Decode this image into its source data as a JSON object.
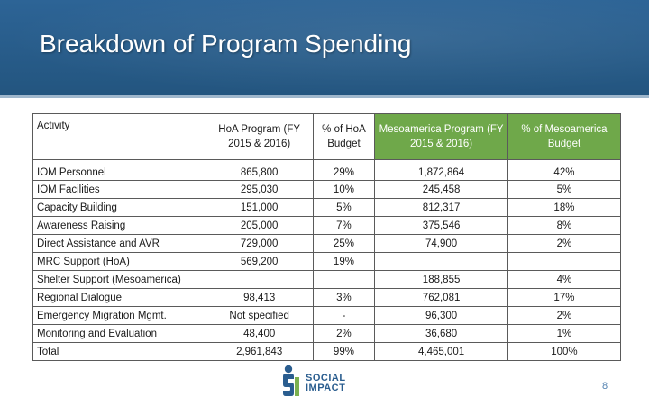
{
  "slide": {
    "title": "Breakdown of Program Spending",
    "page_number": "8"
  },
  "table": {
    "headers": {
      "activity": "Activity",
      "hoa_program": "HoA Program (FY 2015 & 2016)",
      "hoa_pct": "% of HoA Budget",
      "meso_program": "Mesoamerica Program (FY 2015 & 2016)",
      "meso_pct": "% of Mesoamerica Budget"
    },
    "rows": [
      {
        "activity": "IOM Personnel",
        "hoa": "865,800",
        "hoa_pct": "29%",
        "meso": "1,872,864",
        "meso_pct": "42%"
      },
      {
        "activity": "IOM Facilities",
        "hoa": "295,030",
        "hoa_pct": "10%",
        "meso": "245,458",
        "meso_pct": "5%"
      },
      {
        "activity": "Capacity Building",
        "hoa": "151,000",
        "hoa_pct": "5%",
        "meso": "812,317",
        "meso_pct": "18%"
      },
      {
        "activity": "Awareness Raising",
        "hoa": "205,000",
        "hoa_pct": "7%",
        "meso": "375,546",
        "meso_pct": "8%"
      },
      {
        "activity": "Direct Assistance and AVR",
        "hoa": "729,000",
        "hoa_pct": "25%",
        "meso": "74,900",
        "meso_pct": "2%"
      },
      {
        "activity": "MRC Support (HoA)",
        "hoa": "569,200",
        "hoa_pct": "19%",
        "meso": "",
        "meso_pct": ""
      },
      {
        "activity": "Shelter Support (Mesoamerica)",
        "hoa": "",
        "hoa_pct": "",
        "meso": "188,855",
        "meso_pct": "4%"
      },
      {
        "activity": "Regional Dialogue",
        "hoa": "98,413",
        "hoa_pct": "3%",
        "meso": "762,081",
        "meso_pct": "17%"
      },
      {
        "activity": "Emergency Migration Mgmt.",
        "hoa": "Not specified",
        "hoa_pct": "-",
        "meso": "96,300",
        "meso_pct": "2%"
      },
      {
        "activity": "Monitoring and Evaluation",
        "hoa": "48,400",
        "hoa_pct": "2%",
        "meso": "36,680",
        "meso_pct": "1%"
      },
      {
        "activity": "Total",
        "hoa": "2,961,843",
        "hoa_pct": "99%",
        "meso": "4,465,001",
        "meso_pct": "100%"
      }
    ]
  },
  "logo": {
    "line1": "SOCIAL",
    "line2": "IMPACT"
  },
  "colors": {
    "header_bg": "#2a5d8f",
    "meso_header_bg": "#6fa84a",
    "logo_blue": "#2a5d8f"
  }
}
